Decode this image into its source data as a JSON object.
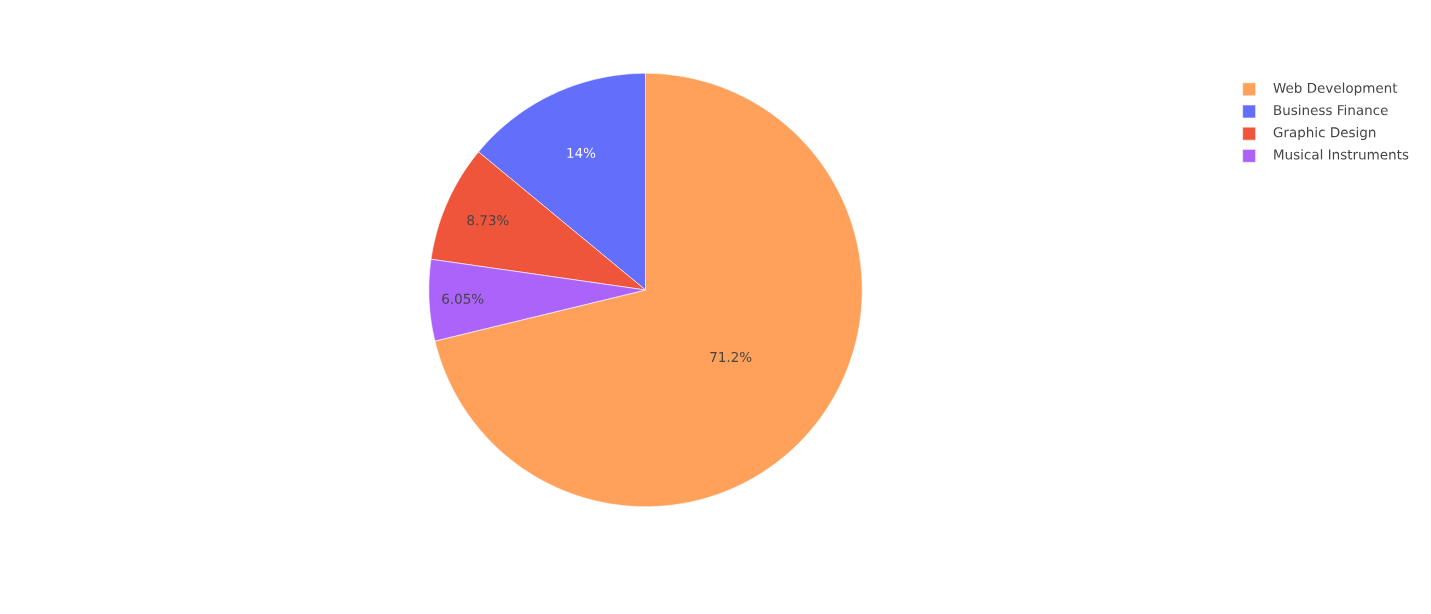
{
  "chart_data": {
    "type": "pie",
    "categories": [
      "Web Development",
      "Business Finance",
      "Graphic Design",
      "Musical Instruments"
    ],
    "values": [
      71.2,
      14,
      8.73,
      6.05
    ],
    "colors": [
      "#ffa15a",
      "#636efa",
      "#ef553b",
      "#ab63fa"
    ],
    "value_labels": [
      "71.2%",
      "14%",
      "8.73%",
      "6.05%"
    ],
    "legend": "top right"
  }
}
